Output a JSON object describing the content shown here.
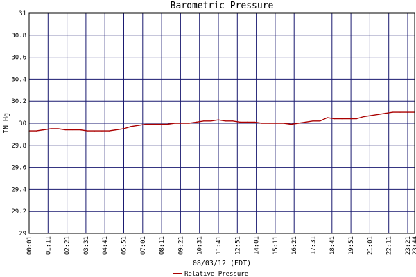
{
  "chart_data": {
    "type": "line",
    "title": "Barometric Pressure",
    "ylabel": "IN Hg",
    "xlabel": "08/03/12 (EDT)",
    "ylim": [
      29,
      31
    ],
    "yticks": [
      "29",
      "29.2",
      "29.4",
      "29.6",
      "29.8",
      "30",
      "30.2",
      "30.4",
      "30.6",
      "30.8",
      "31"
    ],
    "xticks": [
      "00:01",
      "01:11",
      "02:21",
      "03:31",
      "04:41",
      "05:51",
      "07:01",
      "08:11",
      "09:21",
      "10:31",
      "11:41",
      "12:51",
      "14:01",
      "15:11",
      "16:21",
      "17:31",
      "18:41",
      "19:51",
      "21:01",
      "22:11",
      "23:21",
      "23:44"
    ],
    "grid": true,
    "colors": {
      "series": "#aa0000",
      "grid": "#1a1a70",
      "frame": "#000000"
    },
    "series": [
      {
        "name": "Relative Pressure",
        "values": [
          29.93,
          29.93,
          29.94,
          29.95,
          29.95,
          29.94,
          29.94,
          29.94,
          29.93,
          29.93,
          29.93,
          29.93,
          29.94,
          29.95,
          29.97,
          29.98,
          29.99,
          29.99,
          29.99,
          29.99,
          30.0,
          30.0,
          30.0,
          30.01,
          30.02,
          30.02,
          30.03,
          30.02,
          30.02,
          30.01,
          30.01,
          30.01,
          30.0,
          30.0,
          30.0,
          30.0,
          29.99,
          30.0,
          30.01,
          30.02,
          30.02,
          30.05,
          30.04,
          30.04,
          30.04,
          30.04,
          30.06,
          30.07,
          30.08,
          30.09,
          30.1,
          30.1,
          30.1,
          30.1
        ]
      }
    ]
  }
}
